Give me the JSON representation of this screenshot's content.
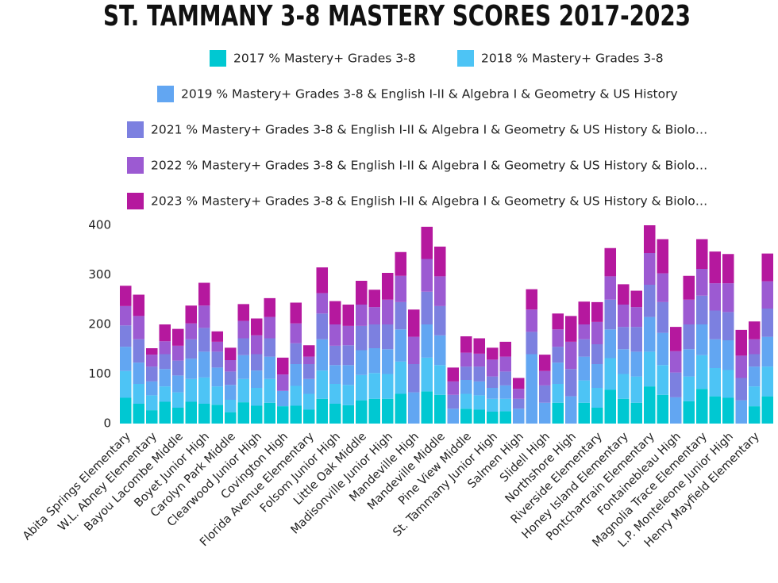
{
  "chart_data": {
    "type": "stacked_bar",
    "title": "ST. TAMMANY 3-8 MASTERY SCORES 2017-2023",
    "categories": [
      "Abita Springs Elementary",
      null,
      "W.L. Abney Elementary",
      null,
      "Bayou Lacombe Middle",
      null,
      "Boyet Junior High",
      null,
      "Carolyn Park Middle",
      null,
      "Clearwood Junior High",
      null,
      "Covington High",
      null,
      "Florida Avenue Elementary",
      null,
      "Folsom Junior High",
      null,
      "Little Oak Middle",
      null,
      "Madisonville Junior High",
      null,
      "Mandeville High",
      null,
      "Mandeville Middle",
      null,
      "Pine View Middle",
      null,
      "St. Tammany Junior High",
      null,
      "Salmen High",
      null,
      "Slidell High",
      null,
      "Northshore High",
      null,
      "Riverside Elementary",
      null,
      "Honey Island Elementary",
      null,
      "Pontchartrain Elementary",
      null,
      "Fontainebleau High",
      null,
      "Magnolia Trace Elementary",
      null,
      "L.P. Monteleone Junior High",
      null,
      "Henry Mayfield Elementary",
      null
    ],
    "series": [
      {
        "name": "2017 % Mastery+ Grades 3-8",
        "color": "#00c8d2",
        "values": [
          52,
          40,
          27,
          44,
          32,
          44,
          40,
          38,
          23,
          43,
          36,
          42,
          35,
          36,
          28,
          50,
          40,
          37,
          47,
          50,
          50,
          60,
          0,
          65,
          58,
          0,
          30,
          28,
          24,
          25,
          0,
          0,
          0,
          42,
          0,
          42,
          32,
          68,
          50,
          42,
          75,
          58,
          0,
          45,
          70,
          55,
          52,
          0,
          35,
          55
        ]
      },
      {
        "name": "2018 % Mastery+ Grades 3-8",
        "color": "#4dc4f5",
        "values": [
          54,
          40,
          30,
          31,
          31,
          46,
          53,
          37,
          25,
          47,
          36,
          48,
          0,
          40,
          32,
          57,
          40,
          41,
          51,
          52,
          50,
          65,
          0,
          68,
          60,
          0,
          30,
          29,
          26,
          25,
          0,
          0,
          0,
          38,
          0,
          45,
          40,
          64,
          50,
          53,
          70,
          60,
          0,
          50,
          68,
          57,
          56,
          0,
          40,
          60
        ]
      },
      {
        "name": "2019 % Mastery+ Grades 3-8 & English I-II & Algebra I & Geometry & US History",
        "color": "#62a6f2",
        "values": [
          49,
          43,
          28,
          35,
          34,
          41,
          52,
          38,
          30,
          48,
          35,
          45,
          31,
          44,
          30,
          63,
          38,
          40,
          50,
          50,
          50,
          65,
          63,
          67,
          60,
          30,
          28,
          28,
          22,
          27,
          30,
          140,
          42,
          43,
          55,
          48,
          48,
          58,
          50,
          50,
          70,
          65,
          53,
          55,
          62,
          58,
          60,
          47,
          40,
          60
        ]
      },
      {
        "name": "2021 % Mastery+ Grades 3-8 & English I-II & Algebra I & Geometry & US History & Biolo…",
        "color": "#7c80e0",
        "values": [
          43,
          47,
          30,
          30,
          30,
          39,
          48,
          32,
          27,
          34,
          33,
          37,
          0,
          42,
          30,
          52,
          39,
          40,
          49,
          48,
          50,
          55,
          57,
          66,
          59,
          28,
          27,
          30,
          23,
          28,
          20,
          45,
          35,
          32,
          55,
          35,
          40,
          60,
          45,
          50,
          65,
          62,
          50,
          50,
          58,
          58,
          57,
          45,
          25,
          57
        ]
      },
      {
        "name": "2022 % Mastery+ Grades 3-8 & English I-II & Algebra I & Geometry & US History & Biolo…",
        "color": "#9c5ad2",
        "values": [
          39,
          47,
          24,
          26,
          30,
          32,
          45,
          20,
          23,
          35,
          38,
          43,
          33,
          40,
          15,
          41,
          43,
          39,
          43,
          35,
          50,
          53,
          55,
          66,
          60,
          27,
          28,
          26,
          34,
          30,
          20,
          45,
          29,
          35,
          55,
          30,
          45,
          47,
          45,
          40,
          64,
          58,
          43,
          50,
          54,
          55,
          58,
          45,
          30,
          55
        ]
      },
      {
        "name": "2023 % Mastery+ Grades 3-8 & English I-II & Algebra I & Geometry & US History & Biolo…",
        "color": "#b5189e",
        "values": [
          41,
          43,
          13,
          34,
          34,
          36,
          46,
          21,
          25,
          34,
          34,
          38,
          34,
          42,
          23,
          52,
          47,
          43,
          48,
          35,
          54,
          48,
          55,
          65,
          60,
          28,
          33,
          31,
          24,
          30,
          22,
          41,
          33,
          32,
          52,
          46,
          40,
          57,
          41,
          33,
          56,
          69,
          49,
          48,
          60,
          64,
          59,
          52,
          36,
          56
        ]
      }
    ],
    "ylim": [
      0,
      400
    ],
    "yticks": [
      0,
      100,
      200,
      300,
      400
    ],
    "grid": false
  }
}
